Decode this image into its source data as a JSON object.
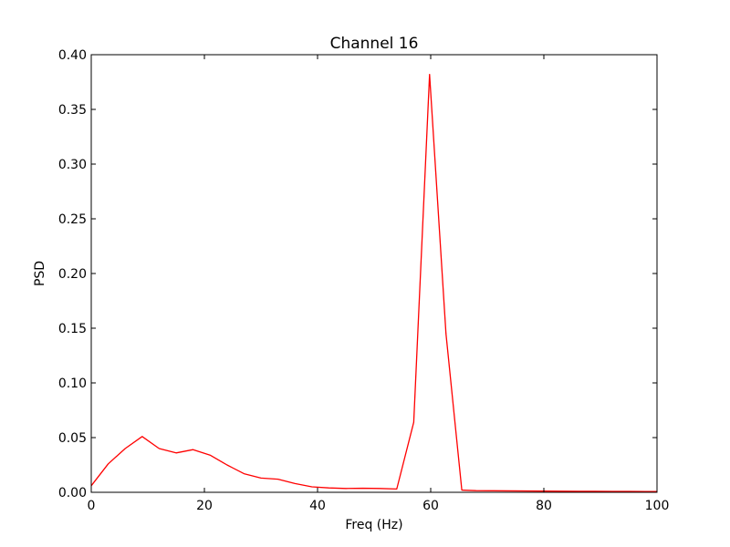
{
  "chart_data": {
    "type": "line",
    "title": "Channel 16",
    "xlabel": "Freq (Hz)",
    "ylabel": "PSD",
    "xlim": [
      0,
      100
    ],
    "ylim": [
      0,
      0.4
    ],
    "grid": false,
    "x_ticks": [
      "0",
      "20",
      "40",
      "60",
      "80",
      "100"
    ],
    "y_ticks": [
      "0.00",
      "0.05",
      "0.10",
      "0.15",
      "0.20",
      "0.25",
      "0.30",
      "0.35",
      "0.40"
    ],
    "series": [
      {
        "color": "#ff0000",
        "x": [
          0,
          3,
          6,
          9,
          12,
          15,
          18,
          21,
          24,
          27,
          30,
          33,
          36,
          39,
          42,
          45,
          48,
          51,
          54,
          57,
          59.8,
          62.7,
          65.5,
          68,
          71,
          74,
          77,
          80,
          83,
          86,
          89,
          92,
          95,
          98,
          100
        ],
        "y": [
          0.006,
          0.026,
          0.04,
          0.051,
          0.04,
          0.036,
          0.039,
          0.034,
          0.025,
          0.017,
          0.013,
          0.012,
          0.008,
          0.005,
          0.004,
          0.0035,
          0.0037,
          0.0035,
          0.003,
          0.064,
          0.382,
          0.145,
          0.002,
          0.0015,
          0.0014,
          0.0013,
          0.0012,
          0.0011,
          0.001,
          0.0009,
          0.0009,
          0.0008,
          0.0008,
          0.0007,
          0.0007
        ]
      }
    ]
  }
}
